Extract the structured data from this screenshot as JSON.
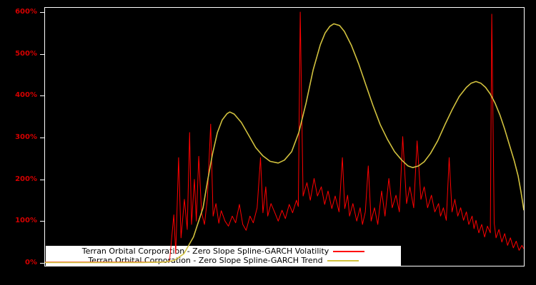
{
  "page": {
    "background": "#000000"
  },
  "plot": {
    "frame_color": "#ffffff",
    "background": "#000000"
  },
  "y_axis": {
    "tick_labels": [
      "0%",
      "100%",
      "200%",
      "300%",
      "400%",
      "500%",
      "600%"
    ],
    "tick_values": [
      0,
      100,
      200,
      300,
      400,
      500,
      600
    ],
    "label_color": "#d40000"
  },
  "legend": {
    "entries": [
      {
        "label": "Terran Orbital Corporation - Zero Slope Spline-GARCH Volatility",
        "color": "#ff0000"
      },
      {
        "label": "Terran Orbital Corporation - Zero Slope Spline-GARCH Trend",
        "color": "#d1c13e"
      }
    ]
  },
  "chart_data": {
    "type": "line",
    "title": "",
    "xlabel": "",
    "ylabel": "",
    "ylim": [
      0,
      600
    ],
    "x_range": [
      0,
      100
    ],
    "grid": false,
    "legend_position": "bottom-left-inside",
    "series": [
      {
        "name": "Terran Orbital Corporation - Zero Slope Spline-GARCH Volatility",
        "color": "#ff0000",
        "width": 1,
        "values": [
          [
            0,
            2
          ],
          [
            5,
            2
          ],
          [
            10,
            2
          ],
          [
            15,
            2
          ],
          [
            20,
            2
          ],
          [
            24,
            2
          ],
          [
            26,
            3
          ],
          [
            26.9,
            115
          ],
          [
            27.3,
            22
          ],
          [
            27.9,
            252
          ],
          [
            28.4,
            60
          ],
          [
            29.1,
            152
          ],
          [
            29.7,
            80
          ],
          [
            30.2,
            312
          ],
          [
            30.6,
            92
          ],
          [
            31.2,
            200
          ],
          [
            31.6,
            100
          ],
          [
            32.1,
            255
          ],
          [
            32.7,
            120
          ],
          [
            33.3,
            92
          ],
          [
            33.9,
            152
          ],
          [
            34.6,
            332
          ],
          [
            35.1,
            112
          ],
          [
            35.7,
            142
          ],
          [
            36.3,
            95
          ],
          [
            36.8,
            125
          ],
          [
            37.6,
            100
          ],
          [
            38.3,
            88
          ],
          [
            39.1,
            112
          ],
          [
            39.8,
            96
          ],
          [
            40.6,
            140
          ],
          [
            41.3,
            92
          ],
          [
            42,
            78
          ],
          [
            42.8,
            112
          ],
          [
            43.5,
            96
          ],
          [
            44.3,
            132
          ],
          [
            45,
            252
          ],
          [
            45.5,
            120
          ],
          [
            46.1,
            182
          ],
          [
            46.5,
            112
          ],
          [
            47.2,
            142
          ],
          [
            48,
            120
          ],
          [
            48.7,
            100
          ],
          [
            49.5,
            126
          ],
          [
            50.2,
            106
          ],
          [
            51,
            140
          ],
          [
            51.7,
            120
          ],
          [
            52.5,
            150
          ],
          [
            52.9,
            135
          ],
          [
            53.3,
            600
          ],
          [
            53.9,
            160
          ],
          [
            54.7,
            192
          ],
          [
            55.4,
            150
          ],
          [
            56.2,
            202
          ],
          [
            56.9,
            160
          ],
          [
            57.7,
            182
          ],
          [
            58.4,
            140
          ],
          [
            59.1,
            172
          ],
          [
            59.9,
            130
          ],
          [
            60.6,
            160
          ],
          [
            61.4,
            122
          ],
          [
            62.1,
            252
          ],
          [
            62.6,
            130
          ],
          [
            63.2,
            162
          ],
          [
            63.6,
            112
          ],
          [
            64.3,
            142
          ],
          [
            65.1,
            100
          ],
          [
            65.8,
            132
          ],
          [
            66.3,
            92
          ],
          [
            66.9,
            122
          ],
          [
            67.5,
            232
          ],
          [
            68.1,
            100
          ],
          [
            68.8,
            132
          ],
          [
            69.5,
            92
          ],
          [
            70.3,
            172
          ],
          [
            71,
            112
          ],
          [
            71.8,
            202
          ],
          [
            72.5,
            132
          ],
          [
            73.3,
            162
          ],
          [
            74,
            122
          ],
          [
            74.7,
            302
          ],
          [
            75.5,
            142
          ],
          [
            76.2,
            182
          ],
          [
            77,
            132
          ],
          [
            77.7,
            292
          ],
          [
            78.5,
            152
          ],
          [
            79.2,
            182
          ],
          [
            79.9,
            132
          ],
          [
            80.7,
            162
          ],
          [
            81.4,
            122
          ],
          [
            82.2,
            142
          ],
          [
            82.6,
            112
          ],
          [
            83.2,
            132
          ],
          [
            83.8,
            102
          ],
          [
            84.4,
            252
          ],
          [
            85,
            122
          ],
          [
            85.6,
            152
          ],
          [
            86.2,
            112
          ],
          [
            86.8,
            132
          ],
          [
            87.4,
            102
          ],
          [
            88,
            122
          ],
          [
            88.5,
            92
          ],
          [
            89.2,
            112
          ],
          [
            89.6,
            82
          ],
          [
            90,
            102
          ],
          [
            90.6,
            72
          ],
          [
            91.2,
            92
          ],
          [
            91.8,
            62
          ],
          [
            92.4,
            88
          ],
          [
            93,
            72
          ],
          [
            93.3,
            595
          ],
          [
            93.8,
            95
          ],
          [
            94.2,
            60
          ],
          [
            94.8,
            80
          ],
          [
            95.4,
            50
          ],
          [
            96,
            70
          ],
          [
            96.6,
            42
          ],
          [
            97.2,
            60
          ],
          [
            97.8,
            36
          ],
          [
            98.4,
            52
          ],
          [
            99,
            30
          ],
          [
            99.6,
            42
          ],
          [
            100,
            34
          ]
        ]
      },
      {
        "name": "Terran Orbital Corporation - Zero Slope Spline-GARCH Trend",
        "color": "#d1c13e",
        "width": 1.6,
        "values": [
          [
            0,
            1
          ],
          [
            10,
            1
          ],
          [
            20,
            1
          ],
          [
            25,
            2
          ],
          [
            27,
            6
          ],
          [
            29,
            22
          ],
          [
            31,
            62
          ],
          [
            33,
            132
          ],
          [
            34,
            200
          ],
          [
            35,
            262
          ],
          [
            36,
            312
          ],
          [
            37,
            342
          ],
          [
            38,
            357
          ],
          [
            38.6,
            361
          ],
          [
            39.5,
            356
          ],
          [
            41,
            336
          ],
          [
            42.5,
            306
          ],
          [
            44,
            276
          ],
          [
            45.5,
            256
          ],
          [
            47,
            243
          ],
          [
            48.7,
            239
          ],
          [
            50,
            246
          ],
          [
            51.5,
            266
          ],
          [
            53,
            312
          ],
          [
            54.5,
            382
          ],
          [
            56,
            462
          ],
          [
            57.5,
            522
          ],
          [
            58.5,
            550
          ],
          [
            59.5,
            566
          ],
          [
            60.3,
            572
          ],
          [
            61.5,
            568
          ],
          [
            62.5,
            554
          ],
          [
            64,
            520
          ],
          [
            65.5,
            476
          ],
          [
            67,
            426
          ],
          [
            68.5,
            376
          ],
          [
            70,
            331
          ],
          [
            71.5,
            296
          ],
          [
            73,
            266
          ],
          [
            74.5,
            246
          ],
          [
            75.8,
            232
          ],
          [
            76.8,
            228
          ],
          [
            78,
            232
          ],
          [
            79.2,
            242
          ],
          [
            80.5,
            262
          ],
          [
            82,
            292
          ],
          [
            83.5,
            330
          ],
          [
            85,
            366
          ],
          [
            86.5,
            398
          ],
          [
            88,
            420
          ],
          [
            89,
            430
          ],
          [
            90,
            434
          ],
          [
            91,
            430
          ],
          [
            92,
            420
          ],
          [
            93,
            404
          ],
          [
            94,
            382
          ],
          [
            95,
            354
          ],
          [
            96,
            320
          ],
          [
            97,
            282
          ],
          [
            98,
            244
          ],
          [
            98.8,
            208
          ],
          [
            99.4,
            170
          ],
          [
            100,
            126
          ]
        ]
      }
    ]
  }
}
